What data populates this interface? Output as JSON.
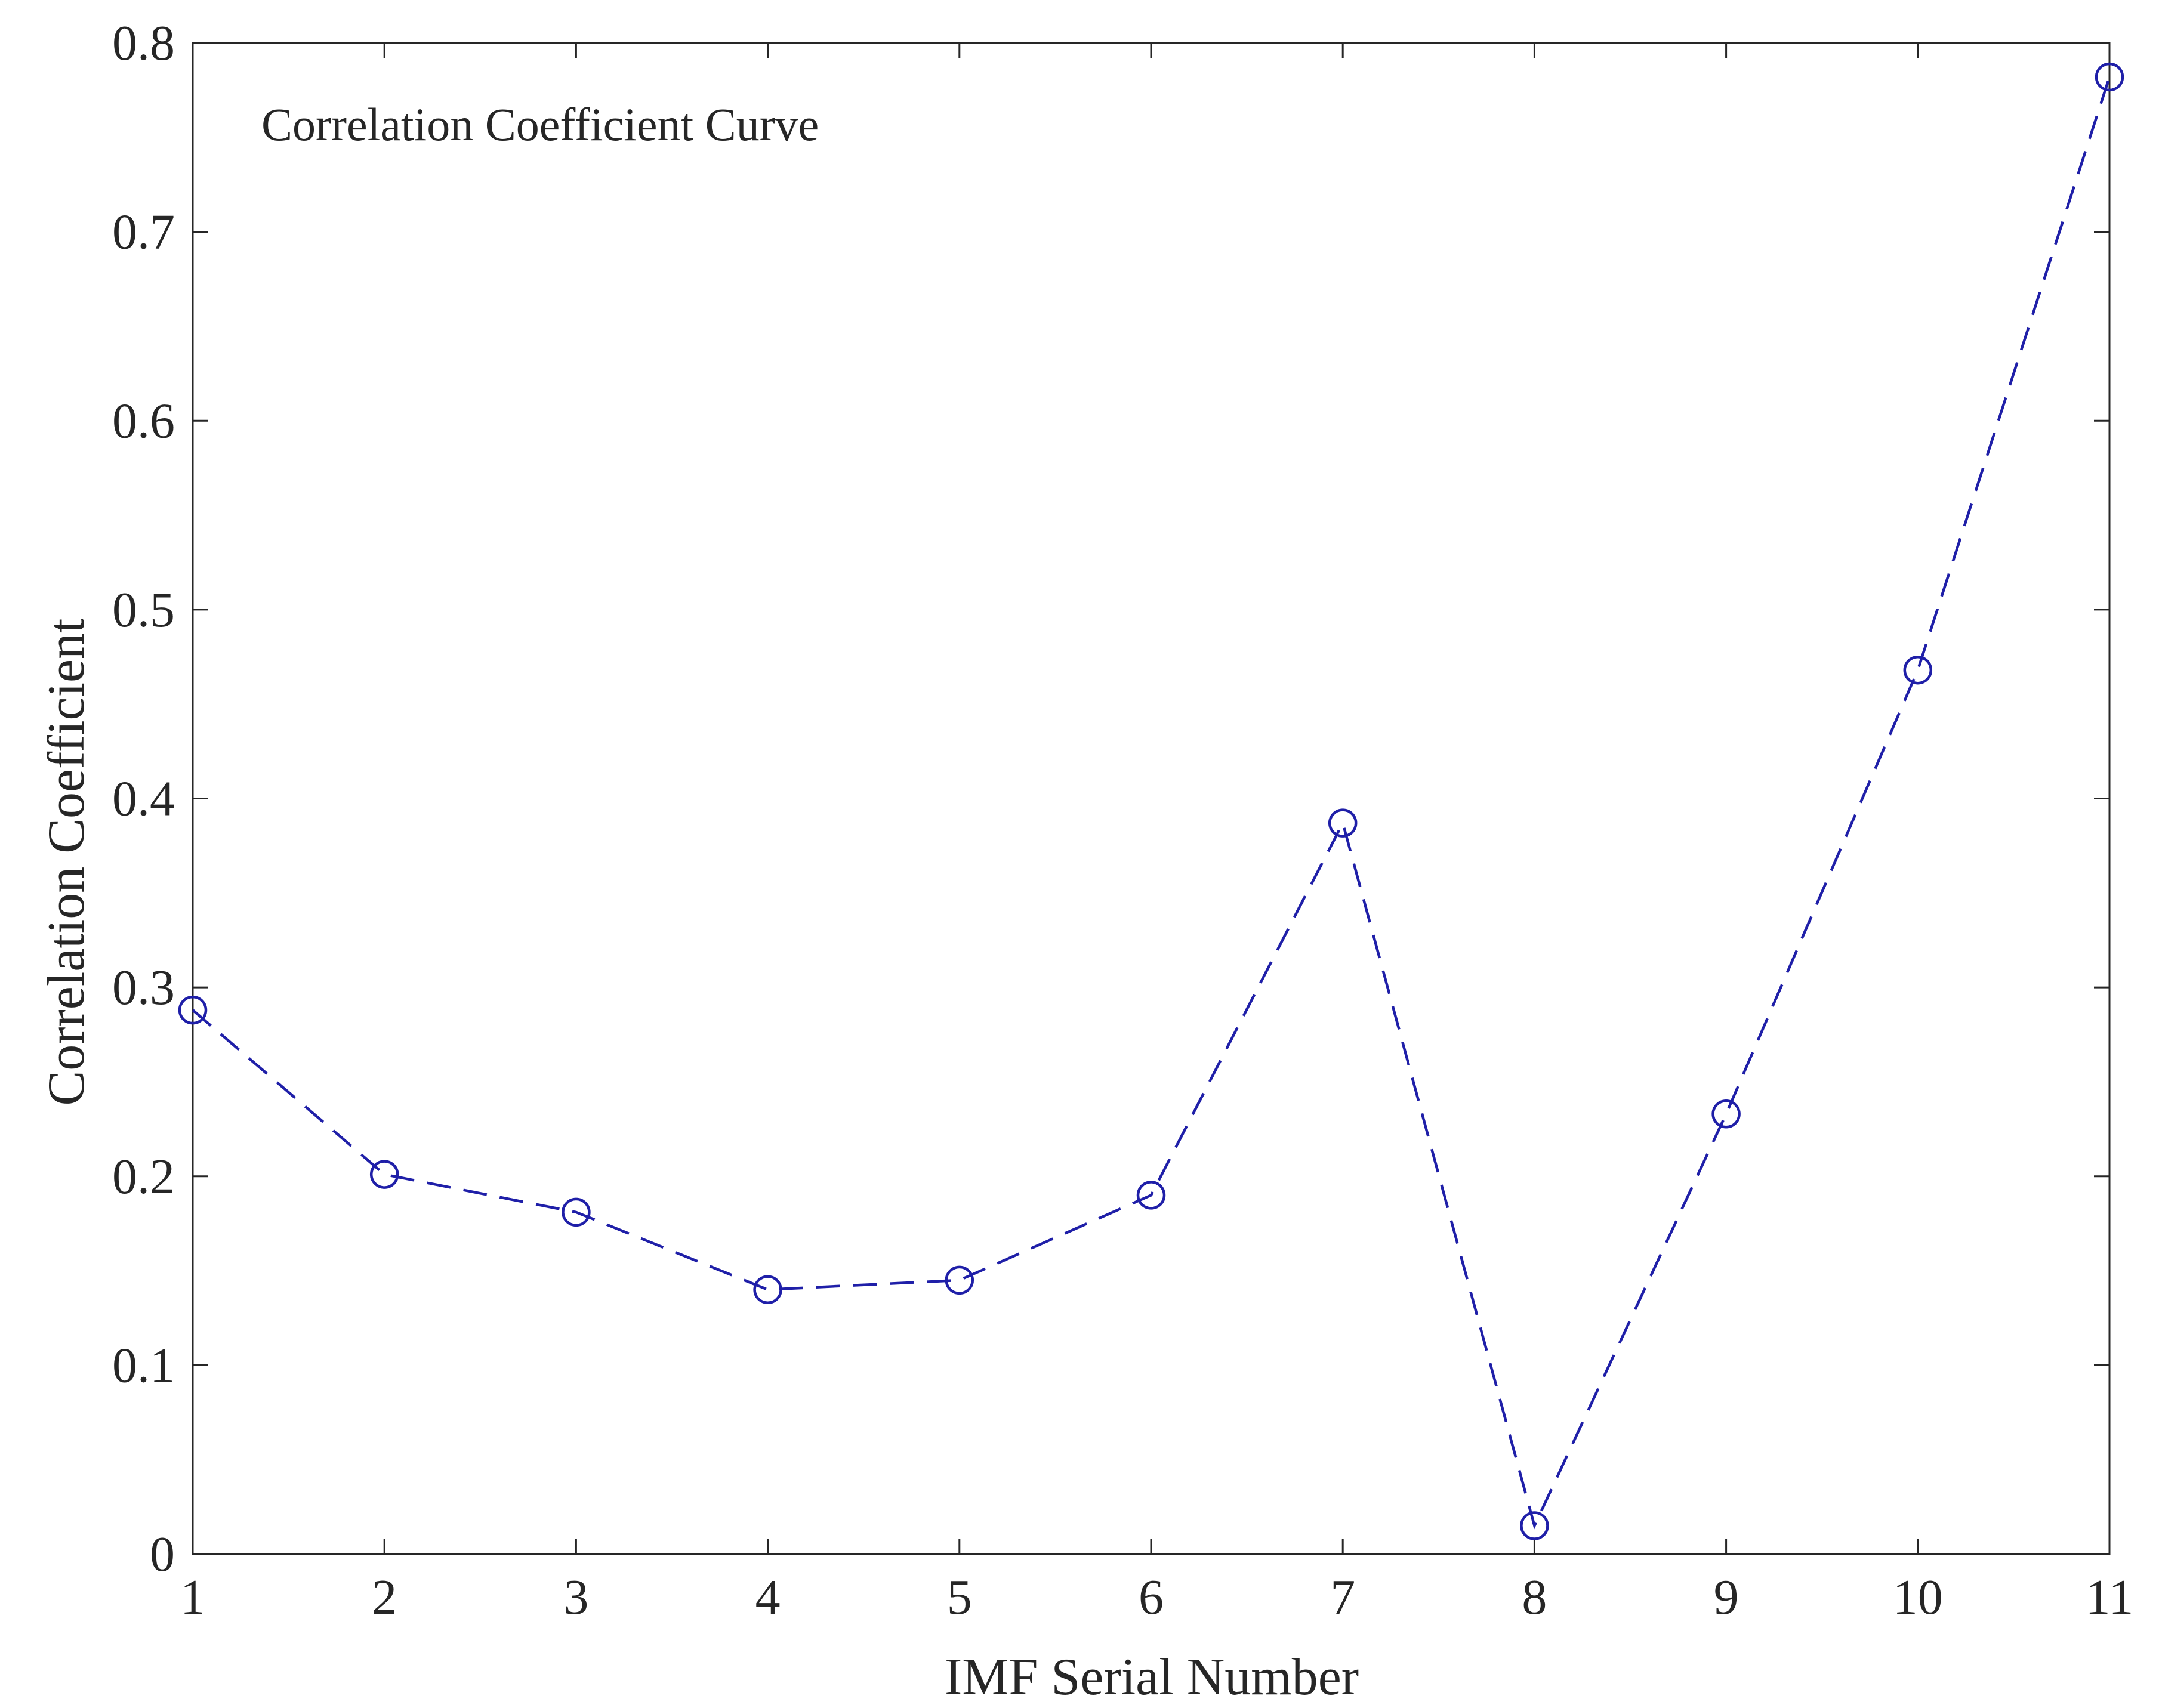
{
  "chart_data": {
    "type": "line",
    "title": "Correlation Coefficient Curve",
    "xlabel": "IMF Serial Number",
    "ylabel": "Correlation Coefficient",
    "xlim": [
      1,
      11
    ],
    "ylim": [
      0,
      0.8
    ],
    "x_ticks": [
      "1",
      "2",
      "3",
      "4",
      "5",
      "6",
      "7",
      "8",
      "9",
      "10",
      "11"
    ],
    "y_ticks": [
      "0",
      "0.1",
      "0.2",
      "0.3",
      "0.4",
      "0.5",
      "0.6",
      "0.7",
      "0.8"
    ],
    "series": [
      {
        "name": "Correlation Coefficient Curve",
        "x": [
          1,
          2,
          3,
          4,
          5,
          6,
          7,
          8,
          9,
          10,
          11
        ],
        "values": [
          0.288,
          0.201,
          0.181,
          0.14,
          0.145,
          0.19,
          0.387,
          0.015,
          0.233,
          0.468,
          0.782
        ],
        "color": "#1f1fa8",
        "line_style": "dashed",
        "marker": "circle"
      }
    ],
    "grid": false
  }
}
